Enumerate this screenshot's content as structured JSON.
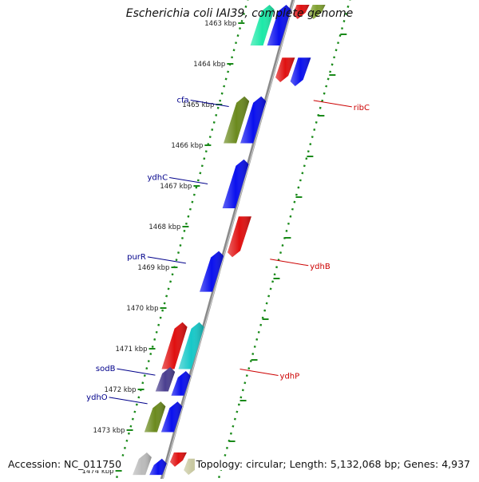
{
  "title": "Escherichia coli IAI39, complete genome",
  "footer": {
    "accession": "Accession: NC_011750",
    "summary": "Topology: circular; Length: 5,132,068 bp; Genes: 4,937"
  },
  "chart_data": {
    "type": "genome-map",
    "kbp_labels": [
      {
        "kbp": 1463,
        "label": "1463 kbp"
      },
      {
        "kbp": 1464,
        "label": "1464 kbp"
      },
      {
        "kbp": 1465,
        "label": "1465 kbp"
      },
      {
        "kbp": 1466,
        "label": "1466 kbp"
      },
      {
        "kbp": 1467,
        "label": "1467 kbp"
      },
      {
        "kbp": 1468,
        "label": "1468 kbp"
      },
      {
        "kbp": 1469,
        "label": "1469 kbp"
      },
      {
        "kbp": 1470,
        "label": "1470 kbp"
      },
      {
        "kbp": 1471,
        "label": "1471 kbp"
      },
      {
        "kbp": 1472,
        "label": "1472 kbp"
      },
      {
        "kbp": 1473,
        "label": "1473 kbp"
      },
      {
        "kbp": 1474,
        "label": "1474 kbp"
      }
    ],
    "genes": [
      {
        "start": 1462.55,
        "end": 1463.55,
        "lane": 1,
        "color": "#1de9a8"
      },
      {
        "start": 1462.55,
        "end": 1463.55,
        "lane": 2,
        "color": "#0a10ee"
      },
      {
        "start": 1462.55,
        "end": 1462.9,
        "lane": 3,
        "color": "#e01010"
      },
      {
        "start": 1462.55,
        "end": 1462.9,
        "lane": 4,
        "color": "#7fa030"
      },
      {
        "start": 1463.85,
        "end": 1464.45,
        "lane": 3,
        "color": "#e01010"
      },
      {
        "start": 1463.85,
        "end": 1464.55,
        "lane": 4,
        "color": "#0a10ee"
      },
      {
        "start": 1464.8,
        "end": 1465.95,
        "lane": 1,
        "color": "#6b8a1e"
      },
      {
        "start": 1464.8,
        "end": 1465.95,
        "lane": 2,
        "color": "#0a10ee"
      },
      {
        "start": 1466.35,
        "end": 1467.55,
        "lane": 2,
        "color": "#0a10ee"
      },
      {
        "start": 1467.75,
        "end": 1468.75,
        "lane": 3,
        "color": "#e01010"
      },
      {
        "start": 1468.6,
        "end": 1469.6,
        "lane": 2,
        "color": "#0a10ee"
      },
      {
        "start": 1470.35,
        "end": 1471.5,
        "lane": 1,
        "color": "#e01010"
      },
      {
        "start": 1470.35,
        "end": 1471.5,
        "lane": 2,
        "color": "#17c8c8"
      },
      {
        "start": 1471.45,
        "end": 1472.05,
        "lane": 1,
        "color": "#4a3f8f"
      },
      {
        "start": 1471.55,
        "end": 1472.15,
        "lane": 2,
        "color": "#0a10ee"
      },
      {
        "start": 1472.3,
        "end": 1473.05,
        "lane": 1,
        "color": "#6b8a1e"
      },
      {
        "start": 1472.3,
        "end": 1473.05,
        "lane": 2,
        "color": "#0a10ee"
      },
      {
        "start": 1473.55,
        "end": 1474.1,
        "lane": 1,
        "color": "#bbbbbb"
      },
      {
        "start": 1473.7,
        "end": 1474.1,
        "lane": 2,
        "color": "#0a10ee"
      },
      {
        "start": 1473.55,
        "end": 1473.9,
        "lane": 3,
        "color": "#e01010"
      },
      {
        "start": 1473.7,
        "end": 1474.1,
        "lane": 4,
        "color": "#c8c8a0"
      }
    ],
    "gene_labels": [
      {
        "name": "ribC",
        "kbp": 1464.9,
        "side": "right",
        "color": "#cc0000"
      },
      {
        "name": "cfa",
        "kbp": 1465.05,
        "side": "left",
        "color": "#00008b"
      },
      {
        "name": "ydhC",
        "kbp": 1466.95,
        "side": "left",
        "color": "#00008b"
      },
      {
        "name": "ydhB",
        "kbp": 1468.8,
        "side": "right",
        "color": "#cc0000"
      },
      {
        "name": "purR",
        "kbp": 1468.9,
        "side": "left",
        "color": "#00008b"
      },
      {
        "name": "ydhP",
        "kbp": 1471.5,
        "side": "right",
        "color": "#cc0000"
      },
      {
        "name": "sodB",
        "kbp": 1471.65,
        "side": "left",
        "color": "#00008b"
      },
      {
        "name": "ydhO",
        "kbp": 1472.35,
        "side": "left",
        "color": "#00008b"
      }
    ],
    "colors": {
      "backbone": "#8a8a8a",
      "ring": "#1a8a1a"
    }
  }
}
